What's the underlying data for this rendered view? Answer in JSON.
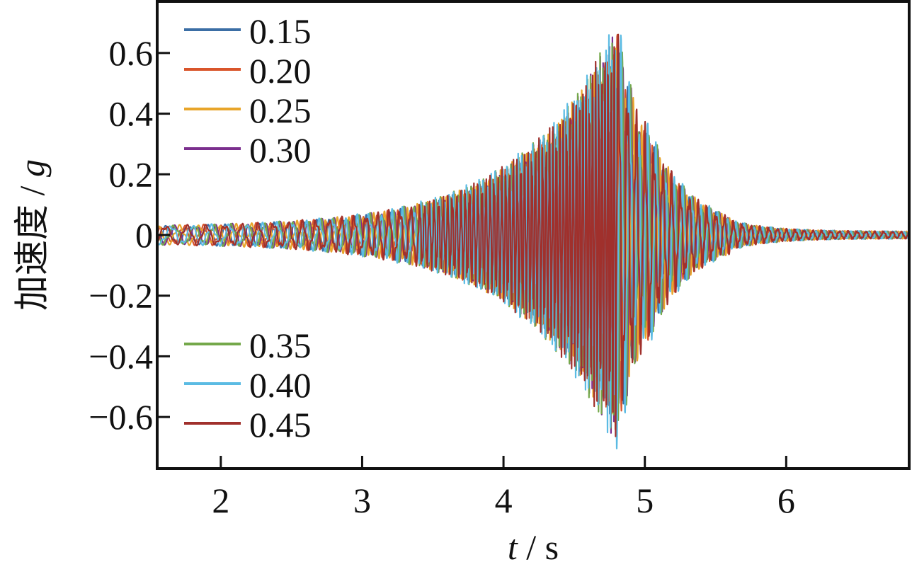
{
  "chart_data": {
    "type": "line",
    "title": "",
    "xlabel_italic": "t",
    "xlabel_rest": " / s",
    "ylabel_text": "加速度 / ",
    "ylabel_italic": "g",
    "xlim": [
      1.55,
      6.87
    ],
    "ylim": [
      -0.77,
      0.77
    ],
    "xticks": [
      2,
      3,
      4,
      5,
      6
    ],
    "xtick_labels": [
      "2",
      "3",
      "4",
      "5",
      "6"
    ],
    "yticks": [
      0.6,
      0.4,
      0.2,
      0,
      -0.2,
      -0.4,
      -0.6
    ],
    "ytick_labels": [
      "0.6",
      "0.4",
      "0.2",
      "0",
      "−0.2",
      "−0.4",
      "−0.6"
    ],
    "grid": false,
    "legend_placement": "left, split upper/lower",
    "peak_time": 4.8,
    "series": [
      {
        "name": "0.15",
        "color": "#3b6ea5",
        "peak": 0.66,
        "seed": 1.1
      },
      {
        "name": "0.20",
        "color": "#d9552b",
        "peak": 0.68,
        "seed": 2.3
      },
      {
        "name": "0.25",
        "color": "#e8a52a",
        "peak": 0.7,
        "seed": 3.7
      },
      {
        "name": "0.30",
        "color": "#7b2f8e",
        "peak": 0.7,
        "seed": 4.9
      },
      {
        "name": "0.35",
        "color": "#74a84a",
        "peak": 0.72,
        "seed": 5.3
      },
      {
        "name": "0.40",
        "color": "#5bbbe3",
        "peak": 0.74,
        "seed": 6.1
      },
      {
        "name": "0.45",
        "color": "#a0302c",
        "peak": 0.72,
        "seed": 7.7
      }
    ]
  }
}
